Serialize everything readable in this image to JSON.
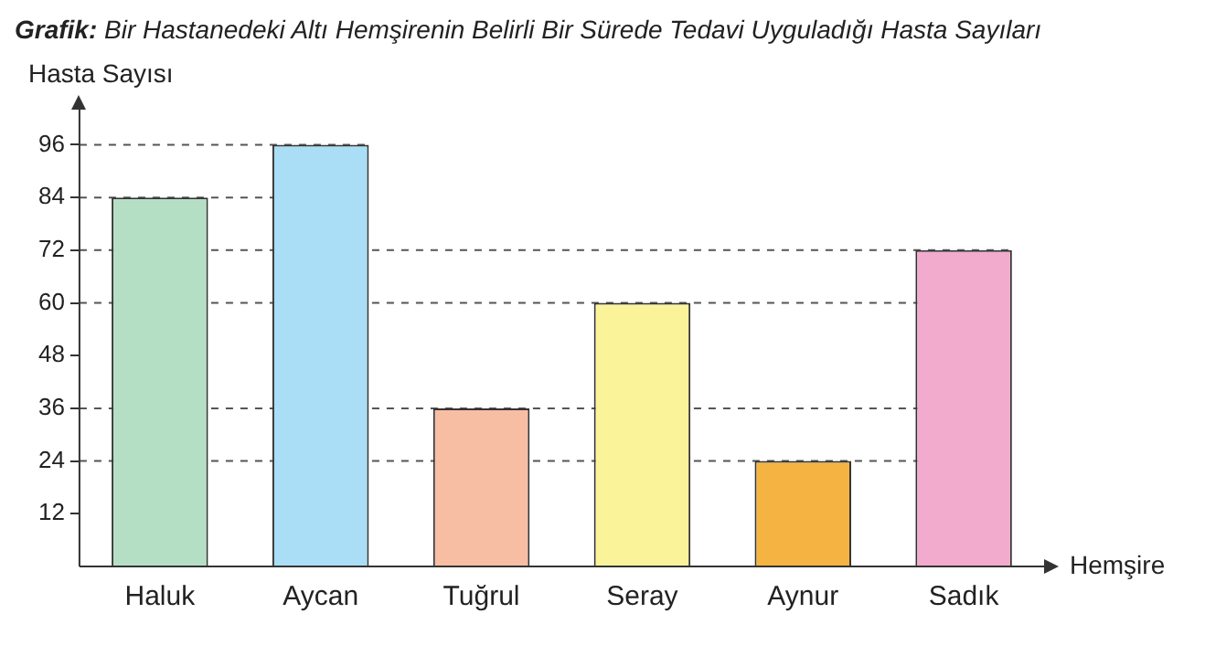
{
  "chart_data": {
    "type": "bar",
    "title": "Grafik: Bir Hastanedeki Altı Hemşirenin Belirli Bir Sürede Tedavi Uyguladığı Hasta Sayıları",
    "xlabel": "Hemşire",
    "ylabel": "Hasta Sayısı",
    "categories": [
      "Haluk",
      "Aycan",
      "Tuğrul",
      "Seray",
      "Aynur",
      "Sadık"
    ],
    "values": [
      84,
      96,
      36,
      60,
      24,
      72
    ],
    "colors": [
      "#b5dfc4",
      "#a9def6",
      "#f7bea4",
      "#fbf39a",
      "#f5b342",
      "#f2aacd"
    ],
    "ylim": [
      0,
      104
    ],
    "yticks": [
      12,
      24,
      36,
      48,
      60,
      72,
      84,
      96
    ],
    "grid": false,
    "legend": false,
    "ref_lines": [
      {
        "axis": "y",
        "value": 96,
        "color": "#555555",
        "line_style": "dashed"
      },
      {
        "axis": "y",
        "value": 84,
        "color": "#555555",
        "line_style": "dashed"
      },
      {
        "axis": "y",
        "value": 72,
        "color": "#555555",
        "line_style": "dashed"
      },
      {
        "axis": "y",
        "value": 60,
        "color": "#555555",
        "line_style": "dashed"
      },
      {
        "axis": "y",
        "value": 36,
        "color": "#555555",
        "line_style": "dashed"
      },
      {
        "axis": "y",
        "value": 24,
        "color": "#555555",
        "line_style": "dashed"
      }
    ]
  }
}
